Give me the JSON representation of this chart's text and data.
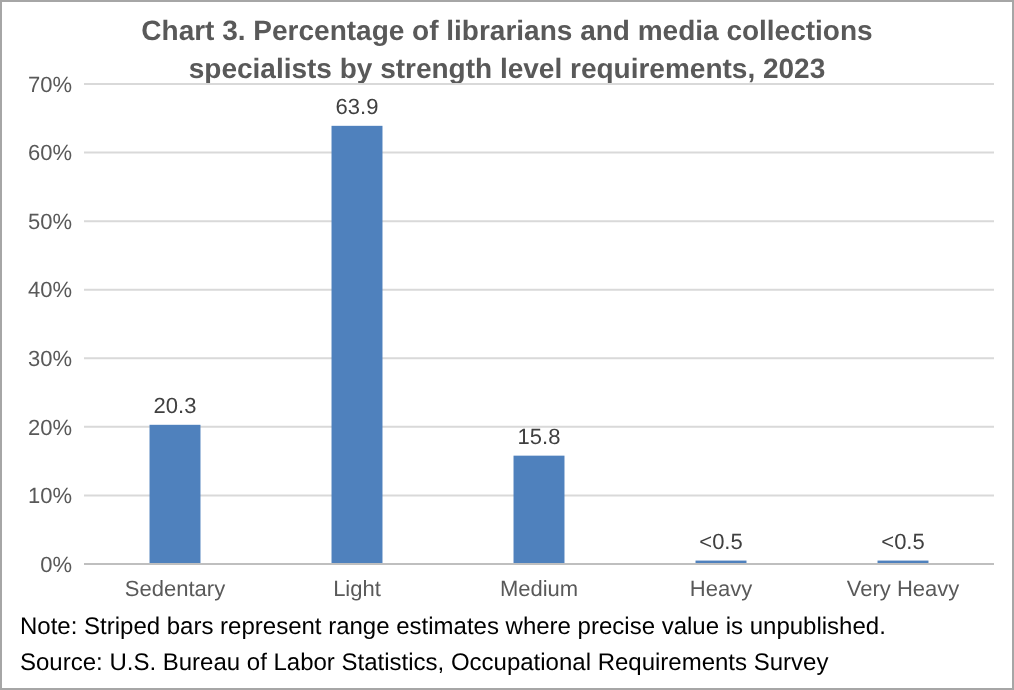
{
  "chart_data": {
    "type": "bar",
    "title": "Chart 3. Percentage of librarians and media collections specialists by strength level requirements, 2023",
    "categories": [
      "Sedentary",
      "Light",
      "Medium",
      "Heavy",
      "Very Heavy"
    ],
    "values": [
      20.3,
      63.9,
      15.8,
      0.5,
      0.5
    ],
    "value_labels": [
      "20.3",
      "63.9",
      "15.8",
      "<0.5",
      "<0.5"
    ],
    "color": "#4f81bd",
    "ylim": [
      0,
      70
    ],
    "yticks": [
      {
        "value": 0,
        "label": "0%"
      },
      {
        "value": 10,
        "label": "10%"
      },
      {
        "value": 20,
        "label": "20%"
      },
      {
        "value": 30,
        "label": "30%"
      },
      {
        "value": 40,
        "label": "40%"
      },
      {
        "value": 50,
        "label": "50%"
      },
      {
        "value": 60,
        "label": "60%"
      },
      {
        "value": 70,
        "label": "70%"
      }
    ],
    "grid": "y",
    "annotations": [
      "Note: Striped bars represent range estimates where precise value is unpublished.",
      "Source: U.S. Bureau of Labor Statistics, Occupational Requirements Survey"
    ]
  }
}
